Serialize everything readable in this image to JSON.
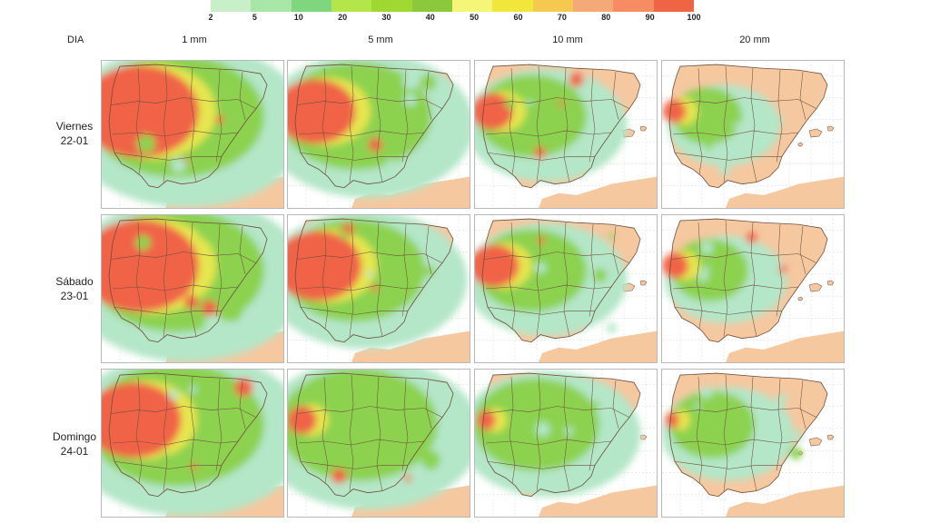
{
  "legend": {
    "ticks": [
      "2",
      "5",
      "10",
      "20",
      "30",
      "40",
      "50",
      "60",
      "70",
      "80",
      "90",
      "100"
    ],
    "colors": [
      "#c8f0c8",
      "#a8e6a8",
      "#7fd67f",
      "#b4e64c",
      "#a0d832",
      "#8cc83c",
      "#f5f578",
      "#f0e63c",
      "#f5c850",
      "#f5a878",
      "#f58c64",
      "#f06446"
    ]
  },
  "header": {
    "dia_label": "DIA",
    "columns": [
      "1 mm",
      "5 mm",
      "10 mm",
      "20 mm"
    ]
  },
  "rows": [
    {
      "day": "Viernes",
      "date": "22-01"
    },
    {
      "day": "Sábado",
      "date": "23-01"
    },
    {
      "day": "Domingo",
      "date": "24-01"
    }
  ],
  "map_colors": {
    "sea": "#ffffff",
    "land": "#f5c8a0",
    "low": "#b4e6c8",
    "mid": "#8cd250",
    "yellow": "#e6e650",
    "high": "#f06446",
    "borders": "#6e4e3c"
  },
  "maps": [
    [
      {
        "coverage": 0.85,
        "high": 0.7
      },
      {
        "coverage": 0.7,
        "high": 0.45
      },
      {
        "coverage": 0.45,
        "high": 0.2
      },
      {
        "coverage": 0.2,
        "high": 0.08
      }
    ],
    [
      {
        "coverage": 0.85,
        "high": 0.7
      },
      {
        "coverage": 0.65,
        "high": 0.5
      },
      {
        "coverage": 0.45,
        "high": 0.25
      },
      {
        "coverage": 0.25,
        "high": 0.1
      }
    ],
    [
      {
        "coverage": 0.85,
        "high": 0.55
      },
      {
        "coverage": 0.75,
        "high": 0.12
      },
      {
        "coverage": 0.55,
        "high": 0.05
      },
      {
        "coverage": 0.3,
        "high": 0.02
      }
    ]
  ]
}
